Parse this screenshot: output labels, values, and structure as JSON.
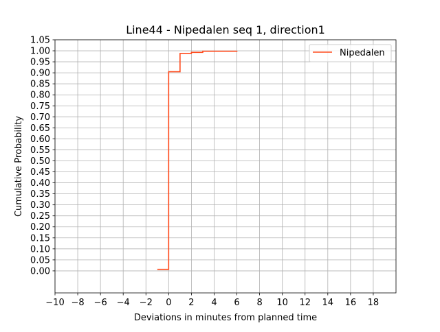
{
  "chart_data": {
    "type": "line",
    "title": "Line44 - Nipedalen seq 1, direction1",
    "xlabel": "Deviations in minutes from planned time",
    "ylabel": "Cumulative Probability",
    "xlim": [
      -10,
      20
    ],
    "ylim": [
      -0.1,
      1.05
    ],
    "grid": true,
    "legend_position": "top-right",
    "x_ticks": [
      -10,
      -8,
      -6,
      -4,
      -2,
      0,
      2,
      4,
      6,
      8,
      10,
      12,
      14,
      16,
      18
    ],
    "x_tick_labels": [
      "−10",
      "−8",
      "−6",
      "−4",
      "−2",
      "0",
      "2",
      "4",
      "6",
      "8",
      "10",
      "12",
      "14",
      "16",
      "18"
    ],
    "y_ticks": [
      0.0,
      0.05,
      0.1,
      0.15,
      0.2,
      0.25,
      0.3,
      0.35,
      0.4,
      0.45,
      0.5,
      0.55,
      0.6,
      0.65,
      0.7,
      0.75,
      0.8,
      0.85,
      0.9,
      0.95,
      1.0,
      1.05
    ],
    "y_tick_labels": [
      "0.00",
      "0.05",
      "0.10",
      "0.15",
      "0.20",
      "0.25",
      "0.30",
      "0.35",
      "0.40",
      "0.45",
      "0.50",
      "0.55",
      "0.60",
      "0.65",
      "0.70",
      "0.75",
      "0.80",
      "0.85",
      "0.90",
      "0.95",
      "1.00",
      "1.05"
    ],
    "series": [
      {
        "name": "Nipedalen",
        "color": "#ff4a1c",
        "step": "post",
        "x": [
          -1,
          0,
          1,
          2,
          3,
          6
        ],
        "y": [
          0.007,
          0.905,
          0.988,
          0.993,
          0.998,
          1.0
        ]
      }
    ]
  }
}
